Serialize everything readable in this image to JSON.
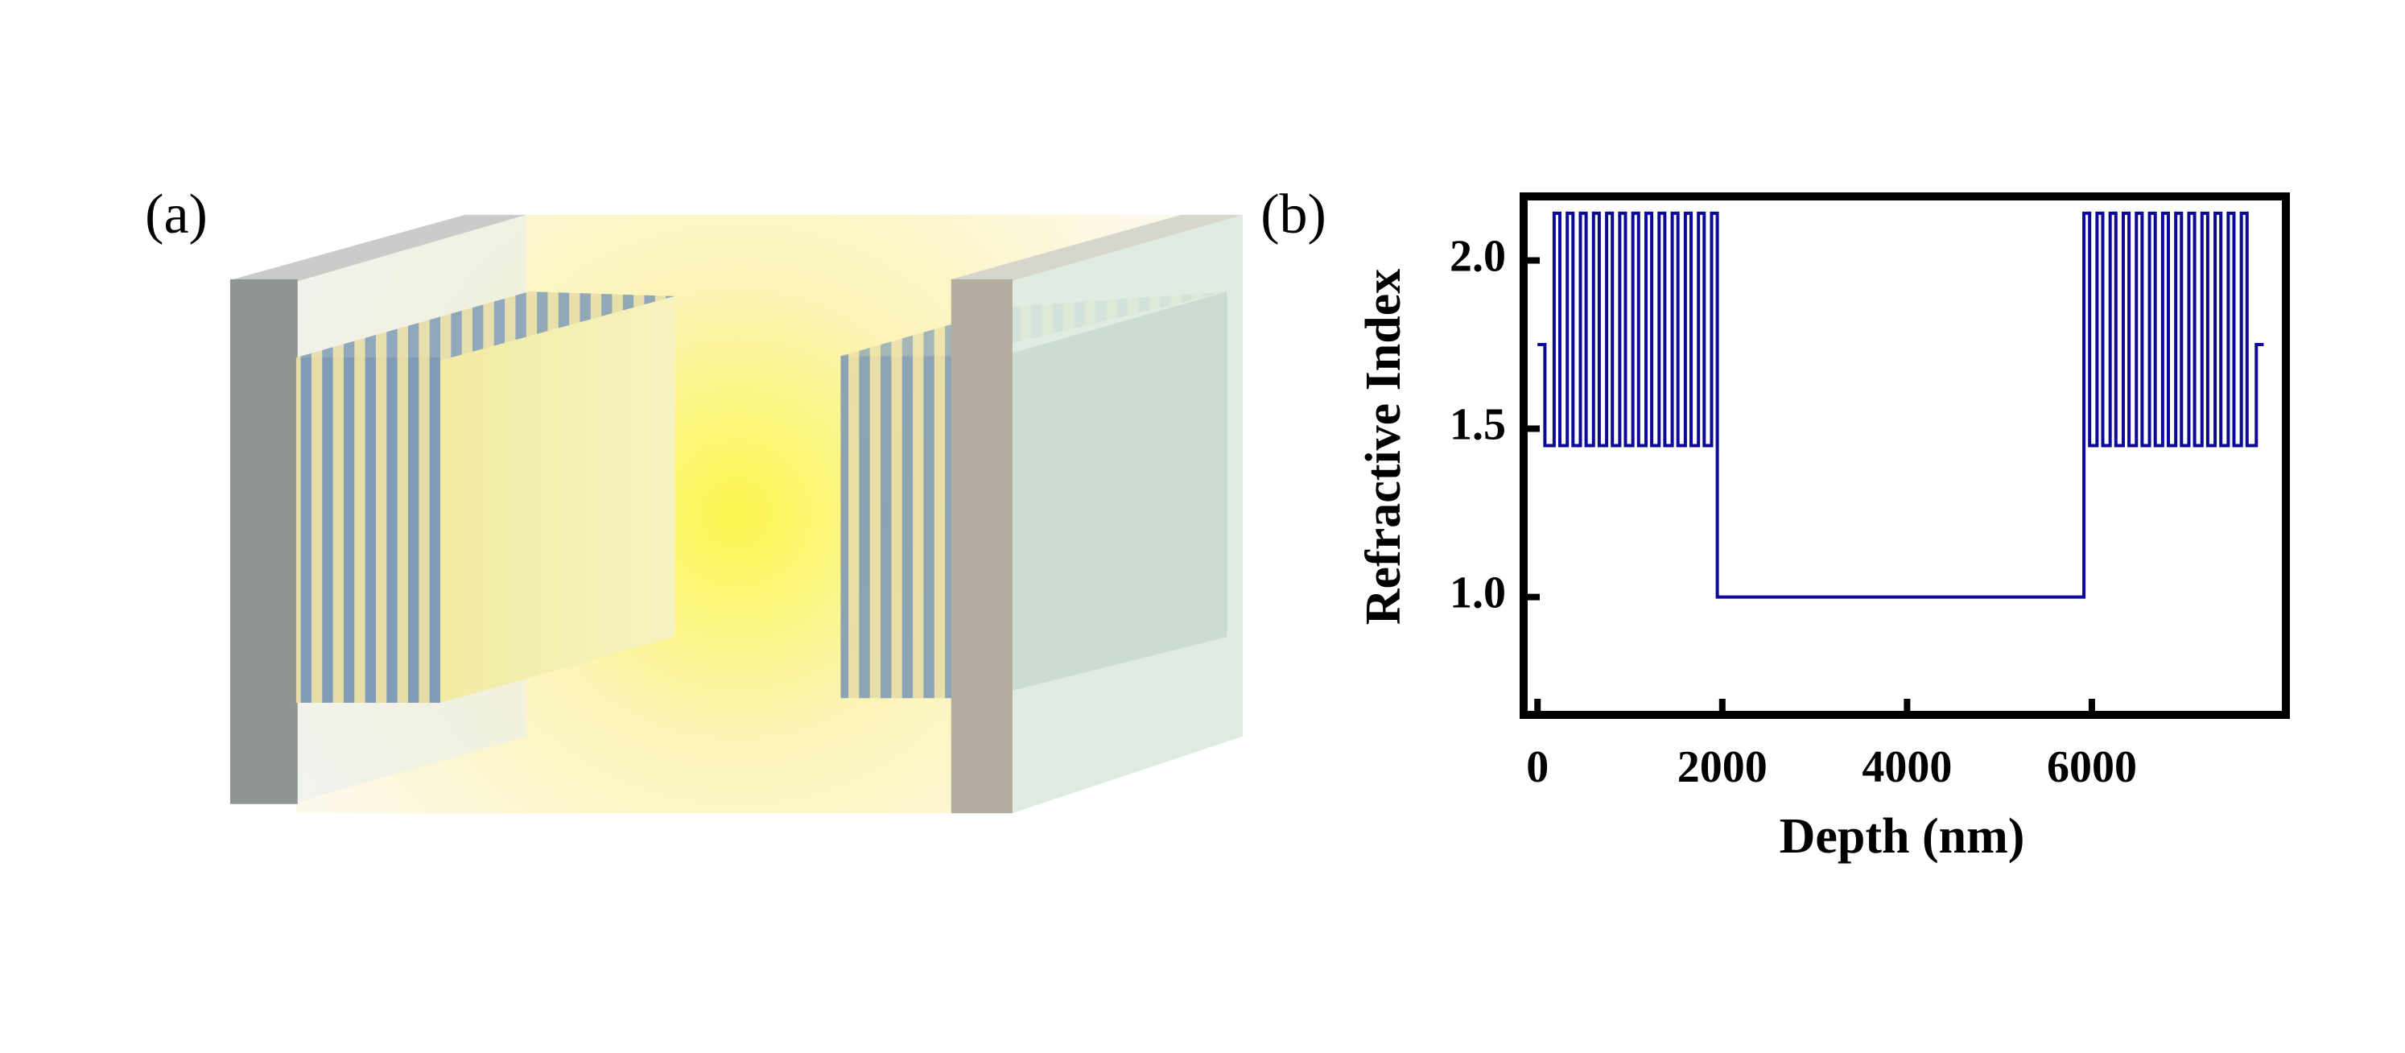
{
  "figure": {
    "panel_labels": [
      "(a)",
      "(b)"
    ]
  },
  "chart_data": {
    "type": "line",
    "xlabel": "Depth (nm)",
    "ylabel": "Refractive Index",
    "color": "#0a0a96",
    "xlim": [
      -150,
      8100
    ],
    "ylim": [
      0.65,
      2.19
    ],
    "xticks": [
      0,
      2000,
      4000,
      6000
    ],
    "yticks": [
      {
        "value": 1,
        "label": "1.0"
      },
      1.5,
      {
        "value": 2,
        "label": "2.0"
      }
    ],
    "x": [
      0,
      80,
      80,
      180,
      180,
      242,
      242,
      322,
      322,
      384,
      384,
      464,
      464,
      526,
      526,
      606,
      606,
      668,
      668,
      748,
      748,
      810,
      810,
      890,
      890,
      952,
      952,
      1032,
      1032,
      1094,
      1094,
      1174,
      1174,
      1236,
      1236,
      1316,
      1316,
      1378,
      1378,
      1458,
      1458,
      1520,
      1520,
      1600,
      1600,
      1662,
      1662,
      1742,
      1742,
      1804,
      1804,
      1884,
      1884,
      1946,
      1946,
      5914,
      5914,
      5976,
      5976,
      6056,
      6056,
      6118,
      6118,
      6198,
      6198,
      6260,
      6260,
      6340,
      6340,
      6402,
      6402,
      6482,
      6482,
      6544,
      6544,
      6624,
      6624,
      6686,
      6686,
      6766,
      6766,
      6828,
      6828,
      6908,
      6908,
      6970,
      6970,
      7050,
      7050,
      7112,
      7112,
      7192,
      7192,
      7254,
      7254,
      7334,
      7334,
      7396,
      7396,
      7476,
      7476,
      7538,
      7538,
      7618,
      7618,
      7680,
      7680,
      7780,
      7780,
      7860
    ],
    "values": [
      1.75,
      1.75,
      1.45,
      1.45,
      2.14,
      2.14,
      1.45,
      1.45,
      2.14,
      2.14,
      1.45,
      1.45,
      2.14,
      2.14,
      1.45,
      1.45,
      2.14,
      2.14,
      1.45,
      1.45,
      2.14,
      2.14,
      1.45,
      1.45,
      2.14,
      2.14,
      1.45,
      1.45,
      2.14,
      2.14,
      1.45,
      1.45,
      2.14,
      2.14,
      1.45,
      1.45,
      2.14,
      2.14,
      1.45,
      1.45,
      2.14,
      2.14,
      1.45,
      1.45,
      2.14,
      2.14,
      1.45,
      1.45,
      2.14,
      2.14,
      1.45,
      1.45,
      2.14,
      2.14,
      1.0,
      1.0,
      2.14,
      2.14,
      1.45,
      1.45,
      2.14,
      2.14,
      1.45,
      1.45,
      2.14,
      2.14,
      1.45,
      1.45,
      2.14,
      2.14,
      1.45,
      1.45,
      2.14,
      2.14,
      1.45,
      1.45,
      2.14,
      2.14,
      1.45,
      1.45,
      2.14,
      2.14,
      1.45,
      1.45,
      2.14,
      2.14,
      1.45,
      1.45,
      2.14,
      2.14,
      1.45,
      1.45,
      2.14,
      2.14,
      1.45,
      1.45,
      2.14,
      2.14,
      1.45,
      1.45,
      2.14,
      2.14,
      1.45,
      1.45,
      2.14,
      2.14,
      1.45,
      1.45,
      1.75,
      1.75
    ]
  }
}
